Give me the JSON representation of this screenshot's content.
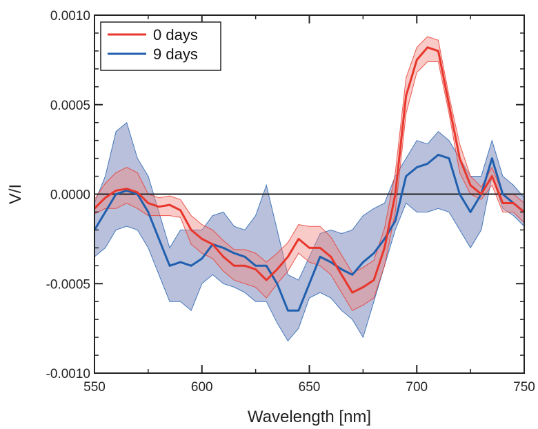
{
  "chart_data": {
    "type": "line",
    "xlabel": "Wavelength [nm]",
    "ylabel": "V/I",
    "xlim": [
      550,
      750
    ],
    "ylim": [
      -0.001,
      0.001
    ],
    "x_ticks": [
      550,
      600,
      650,
      700,
      750
    ],
    "x_tick_labels": [
      "550",
      "600",
      "650",
      "700",
      "750"
    ],
    "y_ticks": [
      -0.001,
      -0.0005,
      0.0,
      0.0005,
      0.001
    ],
    "y_tick_labels": [
      "-0.0010",
      "-0.0005",
      "0.0000",
      "0.0005",
      "0.0010"
    ],
    "zero_line": true,
    "grid": false,
    "legend_position": "top-left",
    "series": [
      {
        "name": "0 days",
        "color": "#e8362b",
        "band_color": "#f08a84",
        "x": [
          550,
          555,
          560,
          565,
          570,
          575,
          580,
          585,
          590,
          595,
          600,
          605,
          610,
          615,
          620,
          625,
          630,
          635,
          640,
          645,
          650,
          655,
          660,
          665,
          670,
          675,
          680,
          685,
          690,
          695,
          700,
          705,
          710,
          715,
          720,
          725,
          730,
          735,
          740,
          745,
          750
        ],
        "y": [
          -8e-05,
          -2e-05,
          2e-05,
          3e-05,
          1e-05,
          -5e-05,
          -7e-05,
          -6e-05,
          -9e-05,
          -0.0002,
          -0.00025,
          -0.00028,
          -0.00035,
          -0.0004,
          -0.0004,
          -0.00042,
          -0.00048,
          -0.00042,
          -0.00035,
          -0.00025,
          -0.0003,
          -0.0003,
          -0.00035,
          -0.00045,
          -0.00055,
          -0.00052,
          -0.00048,
          -0.0003,
          0.0,
          0.00055,
          0.00075,
          0.00082,
          0.0008,
          0.0005,
          0.0002,
          5e-05,
          0.0,
          0.0001,
          -5e-05,
          -5e-05,
          -0.0001
        ],
        "lower": [
          -0.00011,
          -8e-05,
          -8e-05,
          -5e-05,
          -8e-05,
          -0.00012,
          -0.00012,
          -0.00012,
          -0.00013,
          -0.00028,
          -0.00033,
          -0.00036,
          -0.00043,
          -0.00048,
          -0.0005,
          -0.00052,
          -0.00058,
          -0.0005,
          -0.00043,
          -0.00033,
          -0.00038,
          -0.0004,
          -0.00045,
          -0.00055,
          -0.00065,
          -0.00062,
          -0.00058,
          -0.0004,
          -0.0001,
          0.00045,
          0.00068,
          0.00074,
          0.00074,
          0.00045,
          0.00012,
          0.0,
          -3e-05,
          5e-05,
          -0.0001,
          -0.0001,
          -0.00016
        ],
        "upper": [
          -3e-05,
          6e-05,
          0.00012,
          0.00015,
          0.00012,
          0.0,
          -2e-05,
          -1e-05,
          -3e-05,
          -0.00012,
          -0.00017,
          -0.0002,
          -0.00026,
          -0.00031,
          -0.00031,
          -0.00033,
          -0.00038,
          -0.00033,
          -0.00027,
          -0.00017,
          -0.00018,
          -0.00018,
          -0.00024,
          -0.00034,
          -0.00044,
          -0.00041,
          -0.00037,
          -0.00019,
          0.00012,
          0.00065,
          0.00082,
          0.00088,
          0.00086,
          0.00055,
          0.00028,
          0.0001,
          4e-05,
          0.00015,
          0.0,
          0.0,
          -5e-05
        ]
      },
      {
        "name": "9 days",
        "color": "#1f5fae",
        "band_color": "#7f8dbe",
        "x": [
          550,
          555,
          560,
          565,
          570,
          575,
          580,
          585,
          590,
          595,
          600,
          605,
          610,
          615,
          620,
          625,
          630,
          635,
          640,
          645,
          650,
          655,
          660,
          665,
          670,
          675,
          680,
          685,
          690,
          695,
          700,
          705,
          710,
          715,
          720,
          725,
          730,
          735,
          740,
          745,
          750
        ],
        "y": [
          -0.0002,
          -0.0001,
          0.0,
          2e-05,
          0.0,
          -0.0001,
          -0.00025,
          -0.0004,
          -0.00038,
          -0.0004,
          -0.00036,
          -0.00028,
          -0.0003,
          -0.00033,
          -0.00035,
          -0.0004,
          -0.0004,
          -0.0005,
          -0.00065,
          -0.00065,
          -0.0005,
          -0.00035,
          -0.00038,
          -0.00042,
          -0.00045,
          -0.00038,
          -0.00033,
          -0.00025,
          -0.00015,
          0.0001,
          0.00015,
          0.00017,
          0.00022,
          0.0002,
          0.0,
          -0.0001,
          0.0,
          0.0002,
          0.0,
          -5e-05,
          -0.0001
        ],
        "lower": [
          -0.00035,
          -0.0003,
          -0.0002,
          -0.00018,
          -0.0002,
          -0.0003,
          -0.00045,
          -0.0006,
          -0.0006,
          -0.00065,
          -0.0005,
          -0.00045,
          -0.0005,
          -0.00052,
          -0.00055,
          -0.0006,
          -0.0006,
          -0.00072,
          -0.00082,
          -0.00075,
          -0.00058,
          -0.00055,
          -0.00058,
          -0.00065,
          -0.0007,
          -0.0008,
          -0.0006,
          -0.0004,
          -0.0002,
          -5e-05,
          -0.0001,
          -0.0001,
          -8e-05,
          -0.0001,
          -0.0002,
          -0.0003,
          -0.0002,
          0.0001,
          -8e-05,
          -0.00012,
          -0.00018
        ],
        "upper": [
          -5e-05,
          0.0001,
          0.00035,
          0.0004,
          0.0002,
          0.0001,
          -0.0001,
          -0.0003,
          -0.0002,
          -0.0002,
          -0.0002,
          -0.00012,
          -0.0001,
          -0.00018,
          -0.0002,
          -0.00012,
          5e-05,
          -0.0002,
          -0.00045,
          -0.00048,
          -0.00035,
          -0.00022,
          -0.0002,
          -0.00022,
          -0.0002,
          -0.00012,
          -8e-05,
          -5e-05,
          0.0001,
          0.0002,
          0.0003,
          0.00028,
          0.00035,
          0.0003,
          0.0002,
          0.0001,
          0.0001,
          0.0003,
          0.0001,
          5e-05,
          -2e-05
        ]
      }
    ]
  }
}
